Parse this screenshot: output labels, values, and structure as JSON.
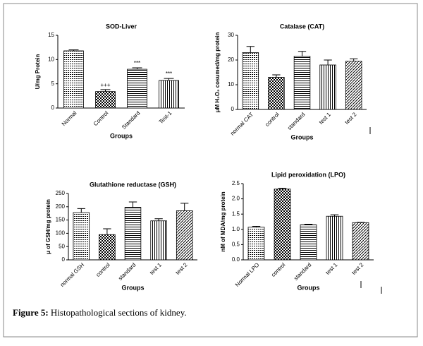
{
  "caption_label": "Figure 5:",
  "caption_text": "Histopathological sections of kidney.",
  "chart_data": [
    {
      "type": "bar",
      "title": "SOD-Liver",
      "ylabel": "U/mg Protein",
      "xlabel": "Groups",
      "categories": [
        "Normal",
        "Control",
        "Standard",
        "Test-1"
      ],
      "values": [
        11.8,
        3.4,
        8.0,
        5.7
      ],
      "error": [
        0.2,
        0.4,
        0.3,
        0.4
      ],
      "bar_labels": [
        null,
        "+++",
        "***",
        "***"
      ],
      "ylim": [
        0,
        15
      ],
      "yticks": [
        0,
        5,
        10,
        15
      ],
      "color": "#000000"
    },
    {
      "type": "bar",
      "title": "Catalase (CAT)",
      "ylabel": "μM H₂O₂ cosumed/mg protein",
      "xlabel": "Groups",
      "categories": [
        "normal CAT",
        "control",
        "standard",
        "test 1",
        "test 2"
      ],
      "values": [
        23,
        13,
        21.5,
        18,
        19.5
      ],
      "error": [
        2.5,
        1,
        2,
        2,
        1
      ],
      "ylim": [
        0,
        30
      ],
      "yticks": [
        0,
        10,
        20,
        30
      ],
      "color": "#000000"
    },
    {
      "type": "bar",
      "title": "Glutathione reductase (GSH)",
      "ylabel": "μ of GSH/mg protein",
      "xlabel": "Groups",
      "categories": [
        "normal GSH",
        "control",
        "standard",
        "test 1",
        "test 2"
      ],
      "values": [
        178,
        95,
        198,
        147,
        185
      ],
      "error": [
        15,
        22,
        20,
        8,
        28
      ],
      "ylim": [
        0,
        250
      ],
      "yticks": [
        0,
        50,
        100,
        150,
        200,
        250
      ],
      "color": "#000000"
    },
    {
      "type": "bar",
      "title": "Lipid peroxidation (LPO)",
      "ylabel": "nM of MDA/mg protein",
      "xlabel": "Groups",
      "categories": [
        "Normal LPO",
        "control",
        "standard",
        "test 1",
        "test 2"
      ],
      "values": [
        1.07,
        2.32,
        1.15,
        1.43,
        1.22
      ],
      "error": [
        0.03,
        0.03,
        0.02,
        0.05,
        0.01
      ],
      "ylim": [
        0,
        2.5
      ],
      "yticks": [
        {
          "value": 0,
          "label": "0.0"
        },
        0.5,
        {
          "value": 1,
          "label": "1.0"
        },
        1.5,
        {
          "value": 2,
          "label": "2.0"
        },
        2.5
      ],
      "color": "#000000"
    }
  ]
}
